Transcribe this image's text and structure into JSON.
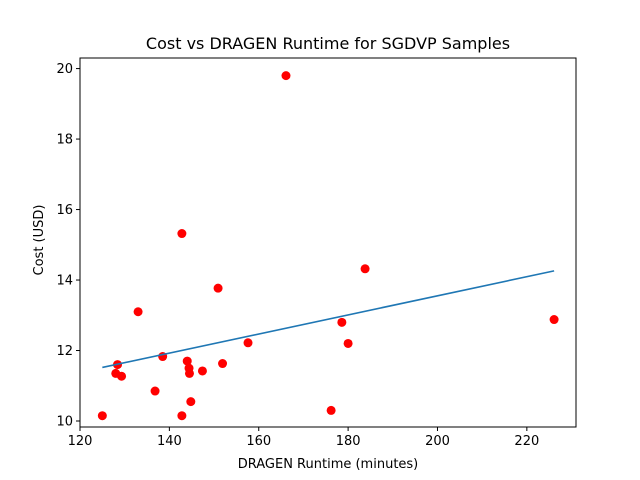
{
  "chart_data": {
    "type": "scatter",
    "title": "Cost vs DRAGEN Runtime for SGDVP Samples",
    "xlabel": "DRAGEN Runtime (minutes)",
    "ylabel": "Cost (USD)",
    "xlim": [
      120.0,
      231.0
    ],
    "ylim": [
      9.83,
      20.3
    ],
    "xticks": [
      120,
      140,
      160,
      180,
      200,
      220
    ],
    "yticks": [
      10,
      12,
      14,
      16,
      18,
      20
    ],
    "grid": false,
    "legend": "none",
    "point_color": "#ff0000",
    "line_color": "#1f77b4",
    "points": [
      {
        "x": 125.0,
        "y": 10.15
      },
      {
        "x": 128.0,
        "y": 11.35
      },
      {
        "x": 128.4,
        "y": 11.6
      },
      {
        "x": 129.3,
        "y": 11.27
      },
      {
        "x": 133.0,
        "y": 13.1
      },
      {
        "x": 136.8,
        "y": 10.85
      },
      {
        "x": 138.5,
        "y": 11.83
      },
      {
        "x": 142.8,
        "y": 10.15
      },
      {
        "x": 142.8,
        "y": 15.32
      },
      {
        "x": 144.0,
        "y": 11.7
      },
      {
        "x": 144.4,
        "y": 11.5
      },
      {
        "x": 144.5,
        "y": 11.35
      },
      {
        "x": 144.8,
        "y": 10.55
      },
      {
        "x": 147.4,
        "y": 11.42
      },
      {
        "x": 150.9,
        "y": 13.77
      },
      {
        "x": 151.9,
        "y": 11.63
      },
      {
        "x": 157.6,
        "y": 12.22
      },
      {
        "x": 166.1,
        "y": 19.8
      },
      {
        "x": 176.2,
        "y": 10.3
      },
      {
        "x": 178.6,
        "y": 12.8
      },
      {
        "x": 180.0,
        "y": 12.2
      },
      {
        "x": 183.8,
        "y": 14.32
      },
      {
        "x": 226.1,
        "y": 12.88
      }
    ],
    "trendline": {
      "x": [
        125.0,
        226.1
      ],
      "y": [
        11.52,
        14.26
      ]
    }
  }
}
